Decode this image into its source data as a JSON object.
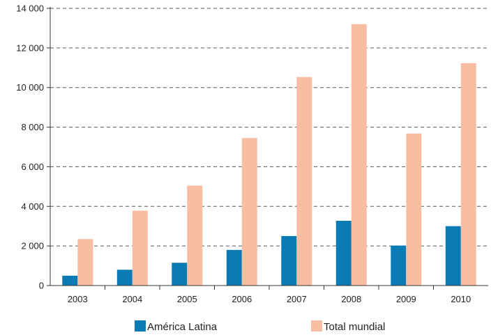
{
  "chart_data": {
    "type": "bar",
    "title": "",
    "xlabel": "",
    "ylabel": "",
    "categories": [
      "2003",
      "2004",
      "2005",
      "2006",
      "2007",
      "2008",
      "2009",
      "2010"
    ],
    "series": [
      {
        "name": "América Latina",
        "color": "#0a7bb5",
        "values": [
          500,
          800,
          1150,
          1800,
          2500,
          3270,
          2020,
          3000
        ]
      },
      {
        "name": "Total mundial",
        "color": "#f8bea3",
        "values": [
          2350,
          3780,
          5050,
          7450,
          10530,
          13200,
          7680,
          11230
        ]
      }
    ],
    "ylim": [
      0,
      14000
    ],
    "yticks": [
      0,
      2000,
      4000,
      6000,
      8000,
      10000,
      12000,
      14000
    ],
    "ytick_labels": [
      "0",
      "2 000",
      "4 000",
      "6 000",
      "8 000",
      "10 000",
      "12 000",
      "14 000"
    ],
    "grid": true,
    "grid_style": "dashed",
    "legend_position": "bottom"
  }
}
